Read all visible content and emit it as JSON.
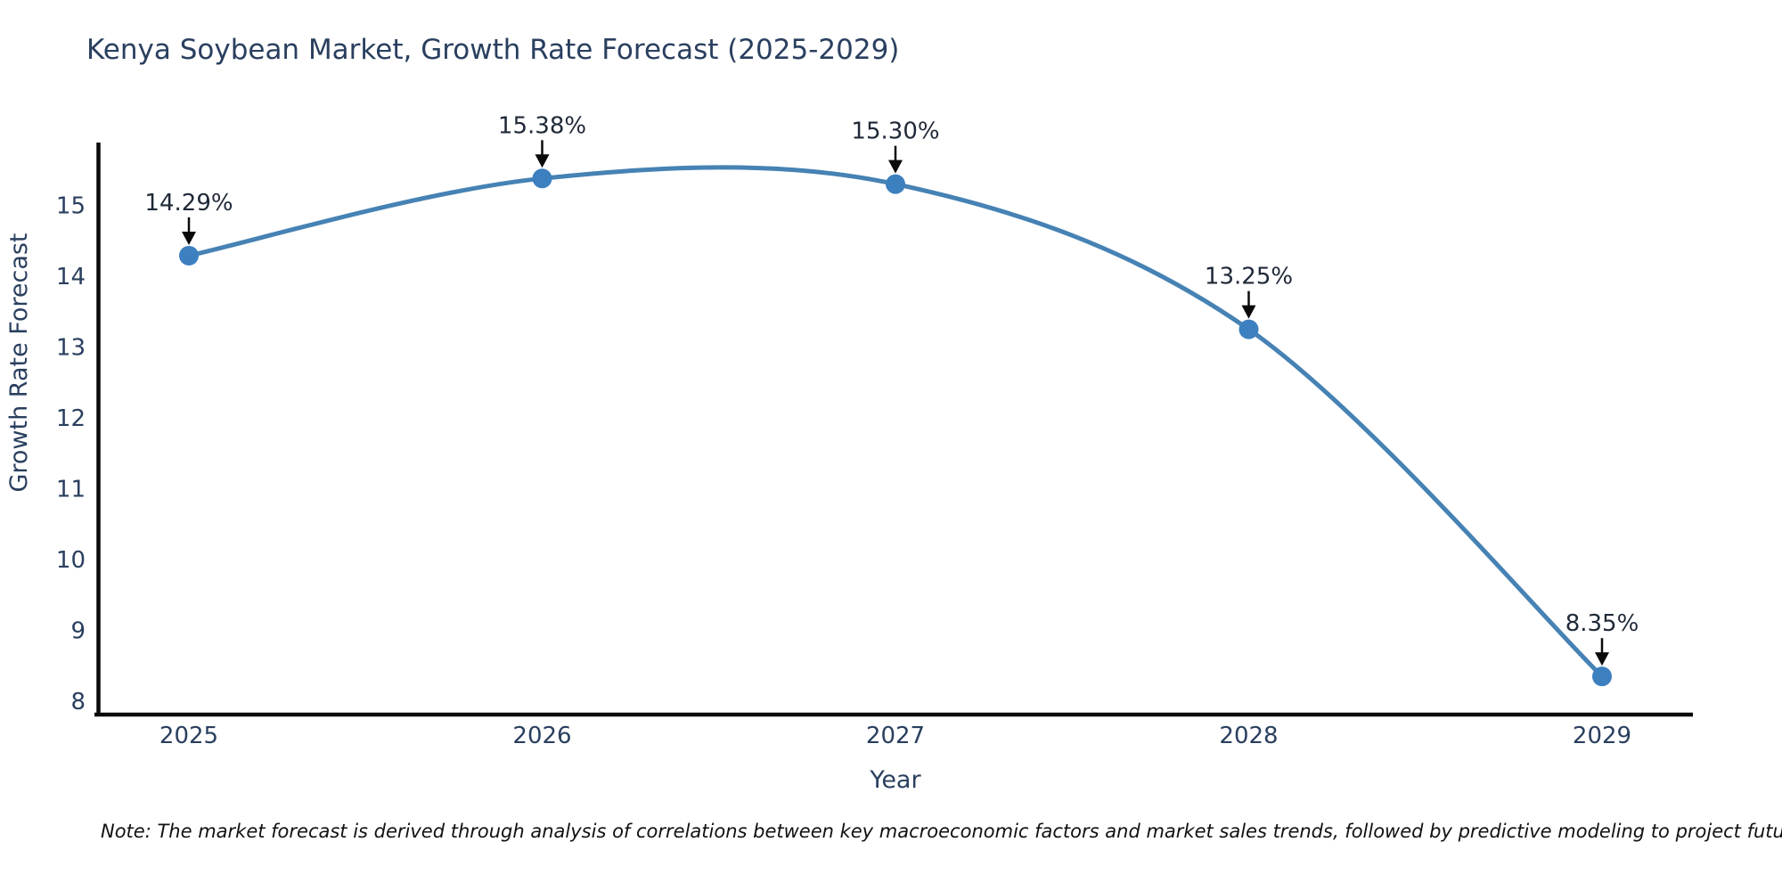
{
  "chart_data": {
    "type": "line",
    "title": "Kenya Soybean Market, Growth Rate Forecast (2025-2029)",
    "xlabel": "Year",
    "ylabel": "Growth Rate Forecast",
    "x": [
      2025,
      2026,
      2027,
      2028,
      2029
    ],
    "x_tick_labels": [
      "2025",
      "2026",
      "2027",
      "2028",
      "2029"
    ],
    "series": [
      {
        "name": "Growth Rate Forecast",
        "values": [
          14.29,
          15.38,
          15.3,
          13.25,
          8.35
        ]
      }
    ],
    "point_labels": [
      "14.29%",
      "15.38%",
      "15.30%",
      "13.25%",
      "8.35%"
    ],
    "y_ticks": [
      8,
      9,
      10,
      11,
      12,
      13,
      14,
      15
    ],
    "y_tick_labels": [
      "8",
      "9",
      "10",
      "11",
      "12",
      "13",
      "14",
      "15"
    ],
    "ylim": [
      7.8,
      16.1
    ],
    "grid": false,
    "legend": "none",
    "line_shape": "spline",
    "annotation_style": "value label above point with black down arrow",
    "colors": {
      "line": "#4682b4",
      "marker": "#3d80c0",
      "axis": "#0a0a0a",
      "tick_text": "#2a3f5f",
      "title_text": "#2a3f5f",
      "annotation_text": "#1f2937",
      "arrow": "#0a0a0a"
    }
  },
  "note": "Note: The market forecast is derived through analysis of correlations between key macroeconomic factors and market sales trends, followed by predictive modeling to project future sales"
}
